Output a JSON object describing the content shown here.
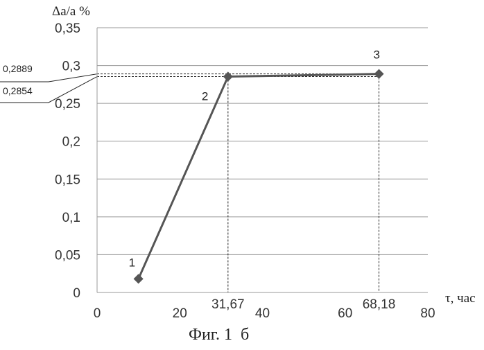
{
  "chart_data": {
    "type": "line",
    "y_label": "Δa/a %",
    "x_label": "τ, час",
    "caption": "Фиг. 1  б",
    "xlim": [
      0,
      80
    ],
    "ylim": [
      0,
      0.35
    ],
    "x_ticks": [
      "0",
      "20",
      "40",
      "60",
      "80"
    ],
    "x_tick_values": [
      0,
      20,
      40,
      60,
      80
    ],
    "y_ticks": [
      "0",
      "0,05",
      "0,1",
      "0,15",
      "0,2",
      "0,25",
      "0,3",
      "0,35"
    ],
    "y_tick_values": [
      0,
      0.05,
      0.1,
      0.15,
      0.2,
      0.25,
      0.3,
      0.35
    ],
    "grid": "horizontal",
    "series": [
      {
        "x": [
          10,
          31.67,
          68.18
        ],
        "y": [
          0.018,
          0.2854,
          0.2889
        ],
        "point_labels": [
          "1",
          "2",
          "3"
        ],
        "color": "#555555"
      }
    ],
    "x_annotations": [
      {
        "x": 31.67,
        "y": 0.2854,
        "label": "31,67"
      },
      {
        "x": 68.18,
        "y": 0.2889,
        "label": "68,18"
      }
    ],
    "y_annotations": [
      {
        "y": 0.2889,
        "label": "0,2889"
      },
      {
        "y": 0.2854,
        "label": "0,2854"
      }
    ]
  }
}
